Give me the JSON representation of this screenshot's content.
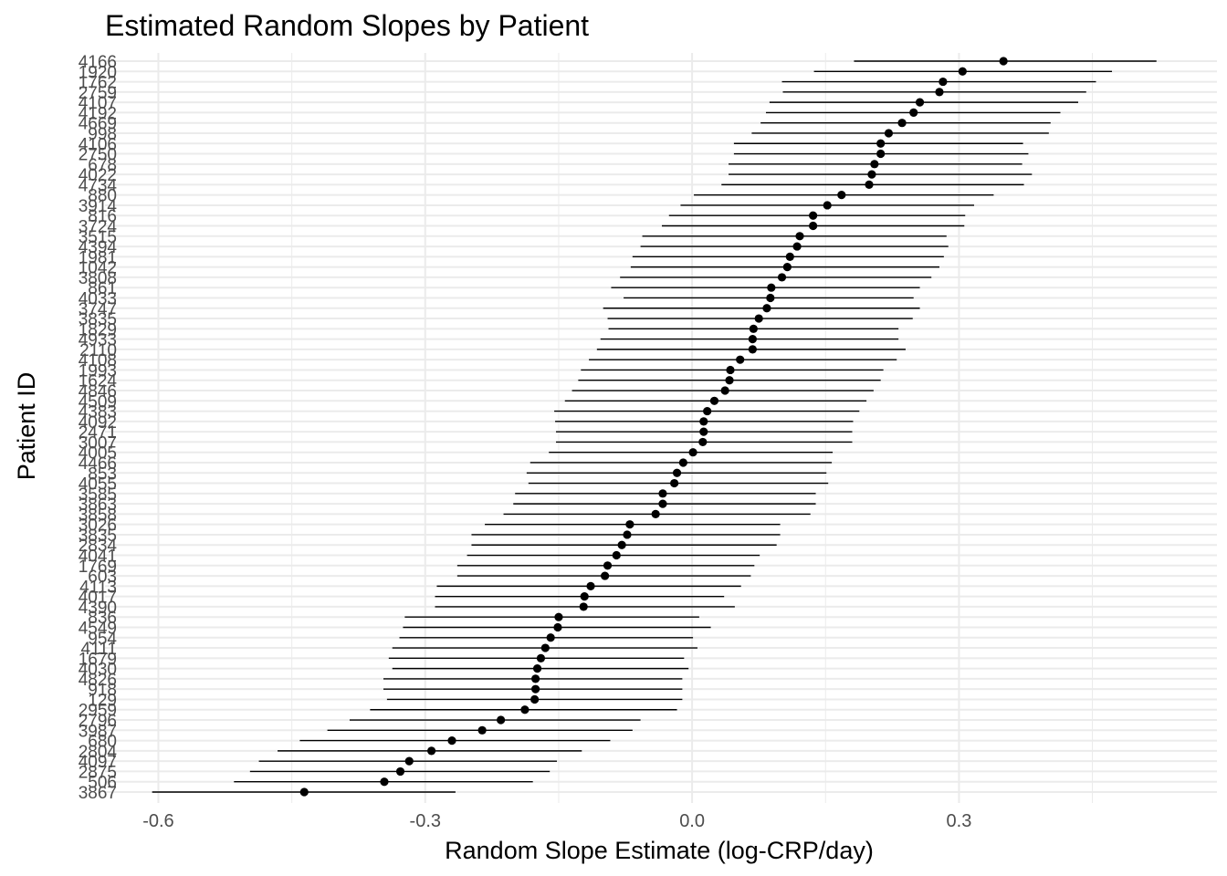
{
  "chart_data": {
    "type": "scatter",
    "subtype": "point-range (caterpillar plot) with horizontal interval lines",
    "title": "Estimated Random Slopes by Patient",
    "xlabel": "Random Slope Estimate (log-CRP/day)",
    "ylabel": "Patient ID",
    "xlim": [
      -0.66,
      0.59
    ],
    "xticks": [
      -0.6,
      -0.3,
      0.0,
      0.3
    ],
    "xtick_labels": [
      "-0.6",
      "-0.3",
      "0.0",
      "0.3"
    ],
    "grid": true,
    "legend": "none",
    "colors": {
      "point": "#000000",
      "line": "#000000",
      "grid": "#ebebeb",
      "text": "#4d4d4d"
    },
    "order": "bottom-to-top by increasing estimate",
    "patients": [
      {
        "id": "3867",
        "estimate": -0.436,
        "lower": -0.607,
        "upper": -0.266
      },
      {
        "id": "506",
        "estimate": -0.346,
        "lower": -0.515,
        "upper": -0.179
      },
      {
        "id": "2875",
        "estimate": -0.328,
        "lower": -0.497,
        "upper": -0.16
      },
      {
        "id": "4097",
        "estimate": -0.318,
        "lower": -0.487,
        "upper": -0.152
      },
      {
        "id": "2804",
        "estimate": -0.293,
        "lower": -0.466,
        "upper": -0.124
      },
      {
        "id": "680",
        "estimate": -0.27,
        "lower": -0.441,
        "upper": -0.092
      },
      {
        "id": "3987",
        "estimate": -0.236,
        "lower": -0.41,
        "upper": -0.067
      },
      {
        "id": "2796",
        "estimate": -0.215,
        "lower": -0.385,
        "upper": -0.058
      },
      {
        "id": "2959",
        "estimate": -0.188,
        "lower": -0.362,
        "upper": -0.017
      },
      {
        "id": "129",
        "estimate": -0.177,
        "lower": -0.343,
        "upper": -0.011
      },
      {
        "id": "918",
        "estimate": -0.176,
        "lower": -0.347,
        "upper": -0.011
      },
      {
        "id": "4826",
        "estimate": -0.176,
        "lower": -0.347,
        "upper": -0.011
      },
      {
        "id": "4030",
        "estimate": -0.174,
        "lower": -0.337,
        "upper": -0.004
      },
      {
        "id": "1679",
        "estimate": -0.17,
        "lower": -0.341,
        "upper": -0.009
      },
      {
        "id": "4111",
        "estimate": -0.165,
        "lower": -0.337,
        "upper": 0.006
      },
      {
        "id": "954",
        "estimate": -0.159,
        "lower": -0.329,
        "upper": 0.001
      },
      {
        "id": "4549",
        "estimate": -0.151,
        "lower": -0.325,
        "upper": 0.021
      },
      {
        "id": "836",
        "estimate": -0.15,
        "lower": -0.323,
        "upper": 0.008
      },
      {
        "id": "4390",
        "estimate": -0.122,
        "lower": -0.289,
        "upper": 0.048
      },
      {
        "id": "4017",
        "estimate": -0.121,
        "lower": -0.289,
        "upper": 0.036
      },
      {
        "id": "4113",
        "estimate": -0.114,
        "lower": -0.287,
        "upper": 0.055
      },
      {
        "id": "603",
        "estimate": -0.098,
        "lower": -0.264,
        "upper": 0.066
      },
      {
        "id": "1769",
        "estimate": -0.095,
        "lower": -0.264,
        "upper": 0.07
      },
      {
        "id": "4041",
        "estimate": -0.085,
        "lower": -0.253,
        "upper": 0.076
      },
      {
        "id": "2834",
        "estimate": -0.079,
        "lower": -0.248,
        "upper": 0.095
      },
      {
        "id": "3835",
        "estimate": -0.073,
        "lower": -0.248,
        "upper": 0.099
      },
      {
        "id": "3026",
        "estimate": -0.07,
        "lower": -0.233,
        "upper": 0.099
      },
      {
        "id": "3858",
        "estimate": -0.041,
        "lower": -0.212,
        "upper": 0.133
      },
      {
        "id": "3863",
        "estimate": -0.033,
        "lower": -0.201,
        "upper": 0.139
      },
      {
        "id": "3585",
        "estimate": -0.033,
        "lower": -0.199,
        "upper": 0.139
      },
      {
        "id": "4055",
        "estimate": -0.02,
        "lower": -0.184,
        "upper": 0.153
      },
      {
        "id": "853",
        "estimate": -0.017,
        "lower": -0.186,
        "upper": 0.151
      },
      {
        "id": "4466",
        "estimate": -0.01,
        "lower": -0.182,
        "upper": 0.157
      },
      {
        "id": "4005",
        "estimate": 0.001,
        "lower": -0.161,
        "upper": 0.158
      },
      {
        "id": "3007",
        "estimate": 0.012,
        "lower": -0.153,
        "upper": 0.18
      },
      {
        "id": "2471",
        "estimate": 0.013,
        "lower": -0.153,
        "upper": 0.18
      },
      {
        "id": "4092",
        "estimate": 0.013,
        "lower": -0.154,
        "upper": 0.181
      },
      {
        "id": "4383",
        "estimate": 0.017,
        "lower": -0.155,
        "upper": 0.188
      },
      {
        "id": "4509",
        "estimate": 0.025,
        "lower": -0.143,
        "upper": 0.196
      },
      {
        "id": "4846",
        "estimate": 0.037,
        "lower": -0.135,
        "upper": 0.204
      },
      {
        "id": "1624",
        "estimate": 0.042,
        "lower": -0.128,
        "upper": 0.212
      },
      {
        "id": "1993",
        "estimate": 0.043,
        "lower": -0.125,
        "upper": 0.215
      },
      {
        "id": "4108",
        "estimate": 0.054,
        "lower": -0.116,
        "upper": 0.23
      },
      {
        "id": "2110",
        "estimate": 0.068,
        "lower": -0.107,
        "upper": 0.24
      },
      {
        "id": "4933",
        "estimate": 0.068,
        "lower": -0.103,
        "upper": 0.232
      },
      {
        "id": "1829",
        "estimate": 0.069,
        "lower": -0.094,
        "upper": 0.232
      },
      {
        "id": "3835",
        "estimate": 0.075,
        "lower": -0.095,
        "upper": 0.248
      },
      {
        "id": "3747",
        "estimate": 0.084,
        "lower": -0.1,
        "upper": 0.256
      },
      {
        "id": "4033",
        "estimate": 0.088,
        "lower": -0.077,
        "upper": 0.249
      },
      {
        "id": "861",
        "estimate": 0.089,
        "lower": -0.091,
        "upper": 0.256
      },
      {
        "id": "3808",
        "estimate": 0.101,
        "lower": -0.081,
        "upper": 0.269
      },
      {
        "id": "1042",
        "estimate": 0.107,
        "lower": -0.069,
        "upper": 0.278
      },
      {
        "id": "1981",
        "estimate": 0.11,
        "lower": -0.067,
        "upper": 0.283
      },
      {
        "id": "4394",
        "estimate": 0.118,
        "lower": -0.058,
        "upper": 0.288
      },
      {
        "id": "3515",
        "estimate": 0.121,
        "lower": -0.056,
        "upper": 0.286
      },
      {
        "id": "3724",
        "estimate": 0.136,
        "lower": -0.034,
        "upper": 0.306
      },
      {
        "id": "816",
        "estimate": 0.136,
        "lower": -0.026,
        "upper": 0.307
      },
      {
        "id": "3914",
        "estimate": 0.152,
        "lower": -0.013,
        "upper": 0.317
      },
      {
        "id": "880",
        "estimate": 0.168,
        "lower": 0.002,
        "upper": 0.339
      },
      {
        "id": "4734",
        "estimate": 0.199,
        "lower": 0.033,
        "upper": 0.373
      },
      {
        "id": "4022",
        "estimate": 0.202,
        "lower": 0.041,
        "upper": 0.382
      },
      {
        "id": "678",
        "estimate": 0.205,
        "lower": 0.041,
        "upper": 0.371
      },
      {
        "id": "2750",
        "estimate": 0.212,
        "lower": 0.047,
        "upper": 0.378
      },
      {
        "id": "4106",
        "estimate": 0.212,
        "lower": 0.047,
        "upper": 0.372
      },
      {
        "id": "998",
        "estimate": 0.221,
        "lower": 0.067,
        "upper": 0.401
      },
      {
        "id": "4669",
        "estimate": 0.236,
        "lower": 0.077,
        "upper": 0.403
      },
      {
        "id": "4192",
        "estimate": 0.249,
        "lower": 0.083,
        "upper": 0.414
      },
      {
        "id": "4107",
        "estimate": 0.256,
        "lower": 0.087,
        "upper": 0.434
      },
      {
        "id": "2759",
        "estimate": 0.278,
        "lower": 0.102,
        "upper": 0.443
      },
      {
        "id": "1762",
        "estimate": 0.282,
        "lower": 0.101,
        "upper": 0.454
      },
      {
        "id": "1920",
        "estimate": 0.304,
        "lower": 0.137,
        "upper": 0.472
      },
      {
        "id": "4166",
        "estimate": 0.35,
        "lower": 0.182,
        "upper": 0.522
      }
    ]
  }
}
